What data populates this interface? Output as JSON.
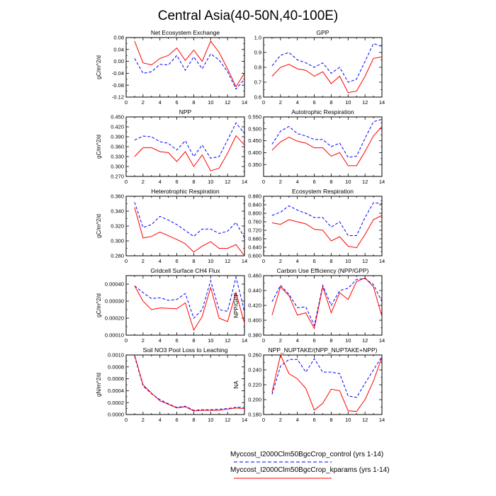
{
  "title": "Central Asia(40-50N,40-100E)",
  "legend": [
    {
      "label": "Myccost_I2000Clm50BgcCrop_control (yrs 1-14)",
      "color": "#0000ff",
      "dash": true
    },
    {
      "label": "Myccost_I2000Clm50BgcCrop_kparams (yrs 1-14)",
      "color": "#ff0000",
      "dash": false
    }
  ],
  "chart_data": [
    {
      "type": "line",
      "title": "Net Ecosystem Exchange",
      "ylabel": "gC/m^2/d",
      "x": [
        1,
        2,
        3,
        4,
        5,
        6,
        7,
        8,
        9,
        10,
        11,
        12,
        13,
        14
      ],
      "xticks": [
        "0",
        "2",
        "4",
        "6",
        "8",
        "10",
        "12",
        "14"
      ],
      "xlim": [
        0,
        14
      ],
      "ylim": [
        -0.12,
        0.08
      ],
      "yticks": [
        "0.08",
        "0.04",
        "0.00",
        "-0.04",
        "-0.08",
        "-0.12"
      ],
      "series": [
        {
          "values": [
            0.01,
            -0.04,
            -0.035,
            -0.01,
            -0.012,
            0.02,
            -0.03,
            0.015,
            -0.025,
            0.025,
            0.005,
            -0.035,
            -0.093,
            -0.06
          ],
          "color": "#0000ff",
          "dash": true
        },
        {
          "values": [
            0.068,
            -0.005,
            -0.012,
            0.01,
            0.02,
            0.045,
            0.003,
            0.038,
            0.0,
            0.068,
            0.03,
            -0.025,
            -0.085,
            -0.04
          ],
          "color": "#ff0000",
          "dash": false
        }
      ]
    },
    {
      "type": "line",
      "title": "GPP",
      "ylabel": "",
      "x": [
        1,
        2,
        3,
        4,
        5,
        6,
        7,
        8,
        9,
        10,
        11,
        12,
        13,
        14
      ],
      "xticks": [
        "0",
        "2",
        "4",
        "6",
        "8",
        "10",
        "12",
        "14"
      ],
      "xlim": [
        0,
        14
      ],
      "ylim": [
        0.6,
        1.0
      ],
      "yticks": [
        "1.0",
        "0.9",
        "0.8",
        "0.7",
        "0.6"
      ],
      "series": [
        {
          "values": [
            0.81,
            0.88,
            0.9,
            0.85,
            0.83,
            0.8,
            0.83,
            0.76,
            0.8,
            0.7,
            0.72,
            0.84,
            0.96,
            0.94
          ],
          "color": "#0000ff",
          "dash": true
        },
        {
          "values": [
            0.74,
            0.8,
            0.82,
            0.79,
            0.78,
            0.74,
            0.77,
            0.69,
            0.74,
            0.63,
            0.64,
            0.74,
            0.86,
            0.87
          ],
          "color": "#ff0000",
          "dash": false
        }
      ]
    },
    {
      "type": "line",
      "title": "NPP",
      "ylabel": "gC/m^2/d",
      "x": [
        1,
        2,
        3,
        4,
        5,
        6,
        7,
        8,
        9,
        10,
        11,
        12,
        13,
        14
      ],
      "xticks": [
        "0",
        "2",
        "4",
        "6",
        "8",
        "10",
        "12",
        "14"
      ],
      "xlim": [
        0,
        14
      ],
      "ylim": [
        0.27,
        0.45
      ],
      "yticks": [
        "0.450",
        "0.420",
        "0.390",
        "0.360",
        "0.330",
        "0.300",
        "0.270"
      ],
      "series": [
        {
          "values": [
            0.38,
            0.392,
            0.39,
            0.375,
            0.37,
            0.35,
            0.378,
            0.33,
            0.365,
            0.325,
            0.33,
            0.38,
            0.432,
            0.4
          ],
          "color": "#0000ff",
          "dash": true
        },
        {
          "values": [
            0.33,
            0.357,
            0.357,
            0.345,
            0.342,
            0.315,
            0.345,
            0.3,
            0.335,
            0.287,
            0.295,
            0.34,
            0.393,
            0.365
          ],
          "color": "#ff0000",
          "dash": false
        }
      ]
    },
    {
      "type": "line",
      "title": "Autotrophic Respiration",
      "ylabel": "",
      "x": [
        1,
        2,
        3,
        4,
        5,
        6,
        7,
        8,
        9,
        10,
        11,
        12,
        13,
        14
      ],
      "xticks": [
        "0",
        "2",
        "4",
        "6",
        "8",
        "10",
        "12",
        "14"
      ],
      "xlim": [
        0,
        14
      ],
      "ylim": [
        0.3,
        0.55
      ],
      "yticks": [
        "0.550",
        "0.500",
        "0.450",
        "0.400",
        "0.350"
      ],
      "series": [
        {
          "values": [
            0.435,
            0.49,
            0.51,
            0.48,
            0.47,
            0.455,
            0.455,
            0.425,
            0.44,
            0.38,
            0.385,
            0.46,
            0.53,
            0.54
          ],
          "color": "#0000ff",
          "dash": true
        },
        {
          "values": [
            0.41,
            0.445,
            0.465,
            0.448,
            0.44,
            0.42,
            0.42,
            0.385,
            0.4,
            0.345,
            0.345,
            0.405,
            0.47,
            0.51
          ],
          "color": "#ff0000",
          "dash": false
        }
      ]
    },
    {
      "type": "line",
      "title": "Heterotrophic Respiration",
      "ylabel": "gC/m^2/d",
      "x": [
        1,
        2,
        3,
        4,
        5,
        6,
        7,
        8,
        9,
        10,
        11,
        12,
        13,
        14
      ],
      "xticks": [
        "0",
        "2",
        "4",
        "6",
        "8",
        "10",
        "12",
        "14"
      ],
      "xlim": [
        0,
        14
      ],
      "ylim": [
        0.28,
        0.36
      ],
      "yticks": [
        "0.360",
        "0.340",
        "0.320",
        "0.300",
        "0.280"
      ],
      "series": [
        {
          "values": [
            0.352,
            0.318,
            0.322,
            0.333,
            0.328,
            0.322,
            0.314,
            0.306,
            0.316,
            0.316,
            0.31,
            0.313,
            0.325,
            0.304
          ],
          "color": "#0000ff",
          "dash": true
        },
        {
          "values": [
            0.345,
            0.304,
            0.306,
            0.312,
            0.307,
            0.302,
            0.296,
            0.285,
            0.293,
            0.299,
            0.29,
            0.29,
            0.295,
            0.28
          ],
          "color": "#ff0000",
          "dash": false
        }
      ]
    },
    {
      "type": "line",
      "title": "Ecosystem Respiration",
      "ylabel": "",
      "x": [
        1,
        2,
        3,
        4,
        5,
        6,
        7,
        8,
        9,
        10,
        11,
        12,
        13,
        14
      ],
      "xticks": [
        "0",
        "2",
        "4",
        "6",
        "8",
        "10",
        "12",
        "14"
      ],
      "xlim": [
        0,
        14
      ],
      "ylim": [
        0.6,
        0.88
      ],
      "yticks": [
        "0.880",
        "0.840",
        "0.800",
        "0.760",
        "0.720",
        "0.680",
        "0.640",
        "0.600"
      ],
      "series": [
        {
          "values": [
            0.79,
            0.805,
            0.835,
            0.815,
            0.8,
            0.78,
            0.78,
            0.735,
            0.76,
            0.695,
            0.695,
            0.78,
            0.85,
            0.845
          ],
          "color": "#0000ff",
          "dash": true
        },
        {
          "values": [
            0.755,
            0.748,
            0.77,
            0.76,
            0.75,
            0.725,
            0.72,
            0.67,
            0.69,
            0.645,
            0.638,
            0.7,
            0.77,
            0.79
          ],
          "color": "#ff0000",
          "dash": false
        }
      ]
    },
    {
      "type": "line",
      "title": "Gridcell Surface CH4 Flux",
      "ylabel": "gC/m^2/d",
      "x": [
        1,
        2,
        3,
        4,
        5,
        6,
        7,
        8,
        9,
        10,
        11,
        12,
        13,
        14
      ],
      "xticks": [
        "0",
        "2",
        "4",
        "6",
        "8",
        "10",
        "12",
        "14"
      ],
      "xlim": [
        0,
        14
      ],
      "ylim": [
        0.0001,
        0.00045
      ],
      "yticks": [
        "0.00040",
        "0.00030",
        "0.00020",
        "0.00010"
      ],
      "series": [
        {
          "values": [
            0.00039,
            0.00035,
            0.000315,
            0.00032,
            0.000305,
            0.00031,
            0.000345,
            0.0002,
            0.00025,
            0.00042,
            0.00025,
            0.00024,
            0.00044,
            0.00024
          ],
          "color": "#0000ff",
          "dash": true
        },
        {
          "values": [
            0.00039,
            0.0003,
            0.00025,
            0.00026,
            0.000258,
            0.000255,
            0.00029,
            0.00013,
            0.00021,
            0.00038,
            0.0002,
            0.00018,
            0.00035,
            0.00017
          ],
          "color": "#ff0000",
          "dash": false
        }
      ]
    },
    {
      "type": "line",
      "title": "Carbon Use Efficiency (NPP/GPP)",
      "ylabel": "NPP/GPP",
      "x": [
        1,
        2,
        3,
        4,
        5,
        6,
        7,
        8,
        9,
        10,
        11,
        12,
        13,
        14
      ],
      "xticks": [
        "0",
        "2",
        "4",
        "6",
        "8",
        "10",
        "12",
        "14"
      ],
      "xlim": [
        0,
        14
      ],
      "ylim": [
        0.38,
        0.46
      ],
      "yticks": [
        "0.460",
        "0.440",
        "0.420",
        "0.400",
        "0.380"
      ],
      "series": [
        {
          "values": [
            0.425,
            0.447,
            0.435,
            0.417,
            0.418,
            0.393,
            0.447,
            0.42,
            0.44,
            0.443,
            0.455,
            0.456,
            0.448,
            0.425
          ],
          "color": "#0000ff",
          "dash": true
        },
        {
          "values": [
            0.407,
            0.445,
            0.433,
            0.407,
            0.41,
            0.389,
            0.445,
            0.41,
            0.437,
            0.428,
            0.452,
            0.457,
            0.445,
            0.405
          ],
          "color": "#ff0000",
          "dash": false
        }
      ]
    },
    {
      "type": "line",
      "title": "Soil NO3 Pool Loss to Leaching",
      "ylabel": "gN/m^2/d",
      "x": [
        1,
        2,
        3,
        4,
        5,
        6,
        7,
        8,
        9,
        10,
        11,
        12,
        13,
        14
      ],
      "xticks": [
        "0",
        "2",
        "4",
        "6",
        "8",
        "10",
        "12",
        "14"
      ],
      "xlim": [
        0,
        14
      ],
      "ylim": [
        0,
        0.001
      ],
      "yticks": [
        "0.0010",
        "0.0008",
        "0.0006",
        "0.0004",
        "0.0002",
        "0.0000"
      ],
      "series": [
        {
          "values": [
            0.00098,
            0.00048,
            0.00035,
            0.00025,
            0.00018,
            0.00012,
            0.00014,
            7e-05,
            8e-05,
            8e-05,
            9e-05,
            0.0001,
            0.00012,
            0.00012
          ],
          "color": "#0000ff",
          "dash": true
        },
        {
          "values": [
            0.001,
            0.0005,
            0.00036,
            0.00023,
            0.00017,
            0.00011,
            0.00013,
            6e-05,
            7e-05,
            7e-05,
            7e-05,
            9e-05,
            0.00011,
            0.0001
          ],
          "color": "#ff0000",
          "dash": false
        }
      ]
    },
    {
      "type": "line",
      "title": "NPP_NUPTAKE/(NPP_NUPTAKE+NPP)",
      "ylabel": "NA",
      "x": [
        1,
        2,
        3,
        4,
        5,
        6,
        7,
        8,
        9,
        10,
        11,
        12,
        13,
        14
      ],
      "xticks": [
        "0",
        "2",
        "4",
        "6",
        "8",
        "10",
        "12",
        "14"
      ],
      "xlim": [
        0,
        14
      ],
      "ylim": [
        0.18,
        0.26
      ],
      "yticks": [
        "0.260",
        "0.240",
        "0.220",
        "0.200",
        "0.180"
      ],
      "series": [
        {
          "values": [
            0.207,
            0.245,
            0.254,
            0.254,
            0.237,
            0.255,
            0.237,
            0.237,
            0.235,
            0.205,
            0.203,
            0.222,
            0.24,
            0.258
          ],
          "color": "#0000ff",
          "dash": true
        },
        {
          "values": [
            0.21,
            0.26,
            0.235,
            0.228,
            0.215,
            0.186,
            0.195,
            0.214,
            0.212,
            0.185,
            0.184,
            0.2,
            0.225,
            0.257
          ],
          "color": "#ff0000",
          "dash": false
        }
      ]
    }
  ]
}
